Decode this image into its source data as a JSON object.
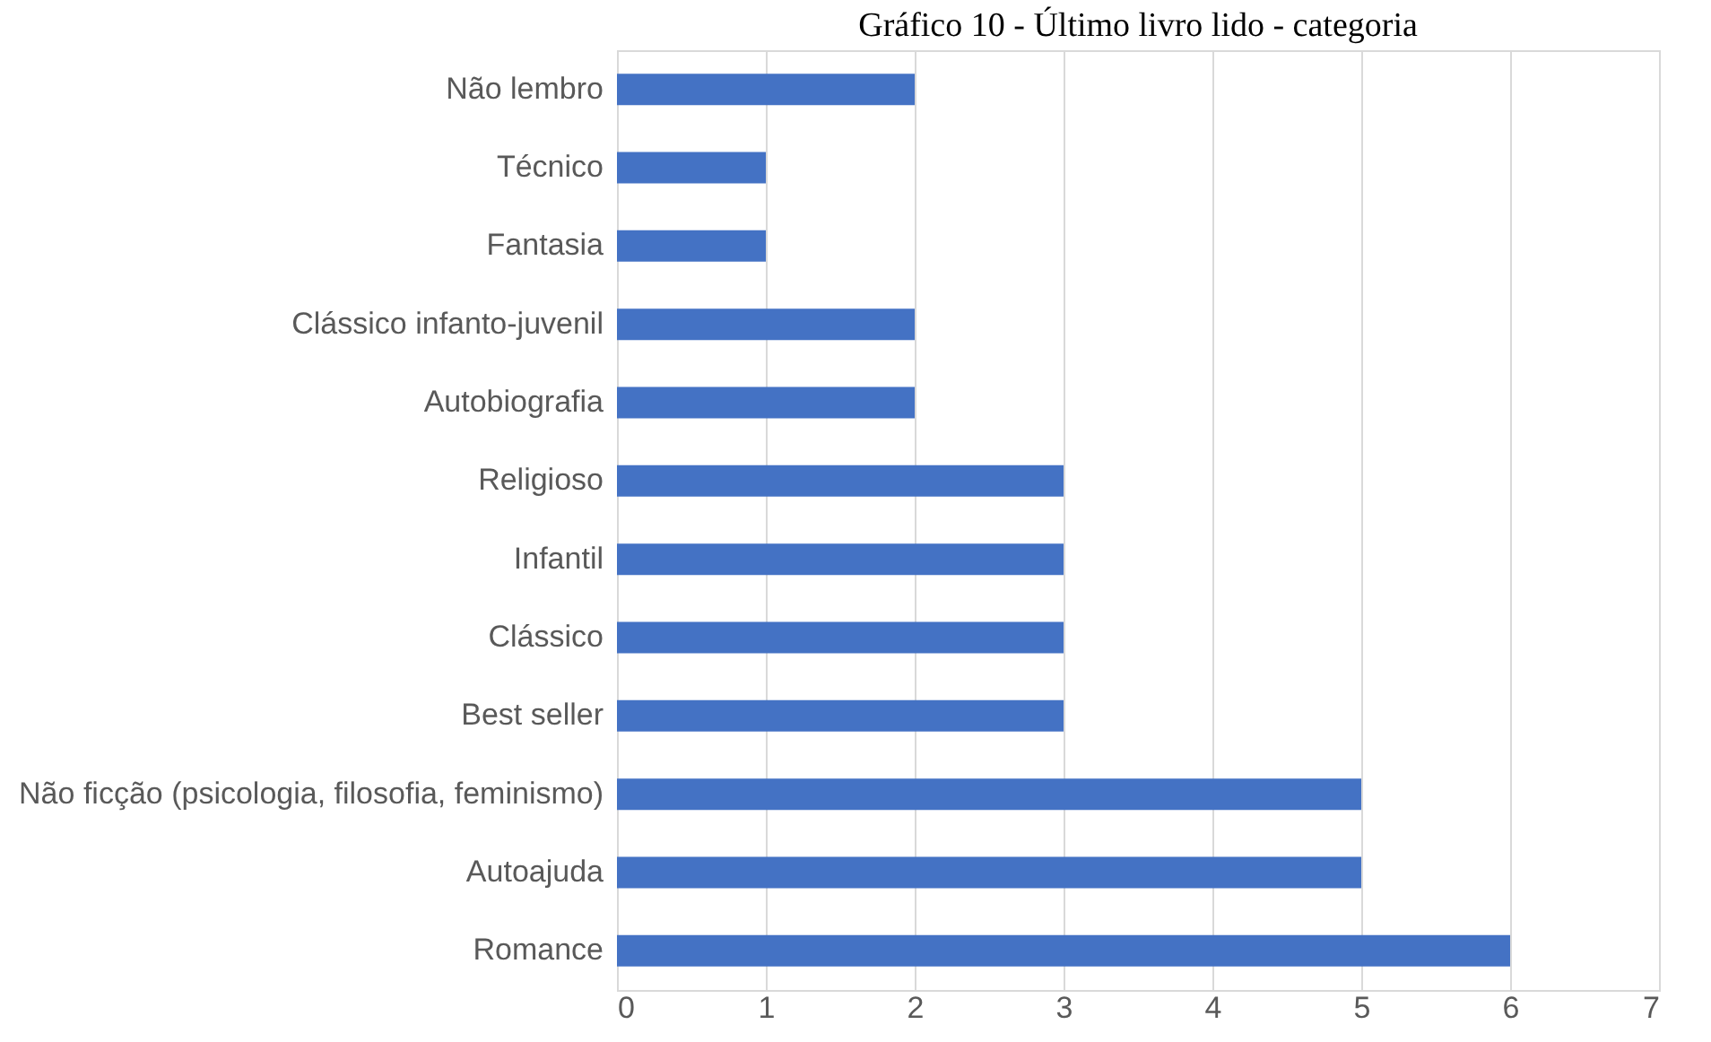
{
  "chart_data": {
    "type": "bar",
    "orientation": "horizontal",
    "title": "Gráfico 10 - Último livro lido - categoria",
    "categories": [
      "Não lembro",
      "Técnico",
      "Fantasia",
      "Clássico infanto-juvenil",
      "Autobiografia",
      "Religioso",
      "Infantil",
      "Clássico",
      "Best seller",
      "Não ficção (psicologia, filosofia, feminismo)",
      "Autoajuda",
      "Romance"
    ],
    "values": [
      2,
      1,
      1,
      2,
      2,
      3,
      3,
      3,
      3,
      5,
      5,
      6
    ],
    "color": "#4472c4",
    "xlim": [
      0,
      7
    ],
    "xticks": [
      0,
      1,
      2,
      3,
      4,
      5,
      6,
      7
    ],
    "grid": "x"
  }
}
